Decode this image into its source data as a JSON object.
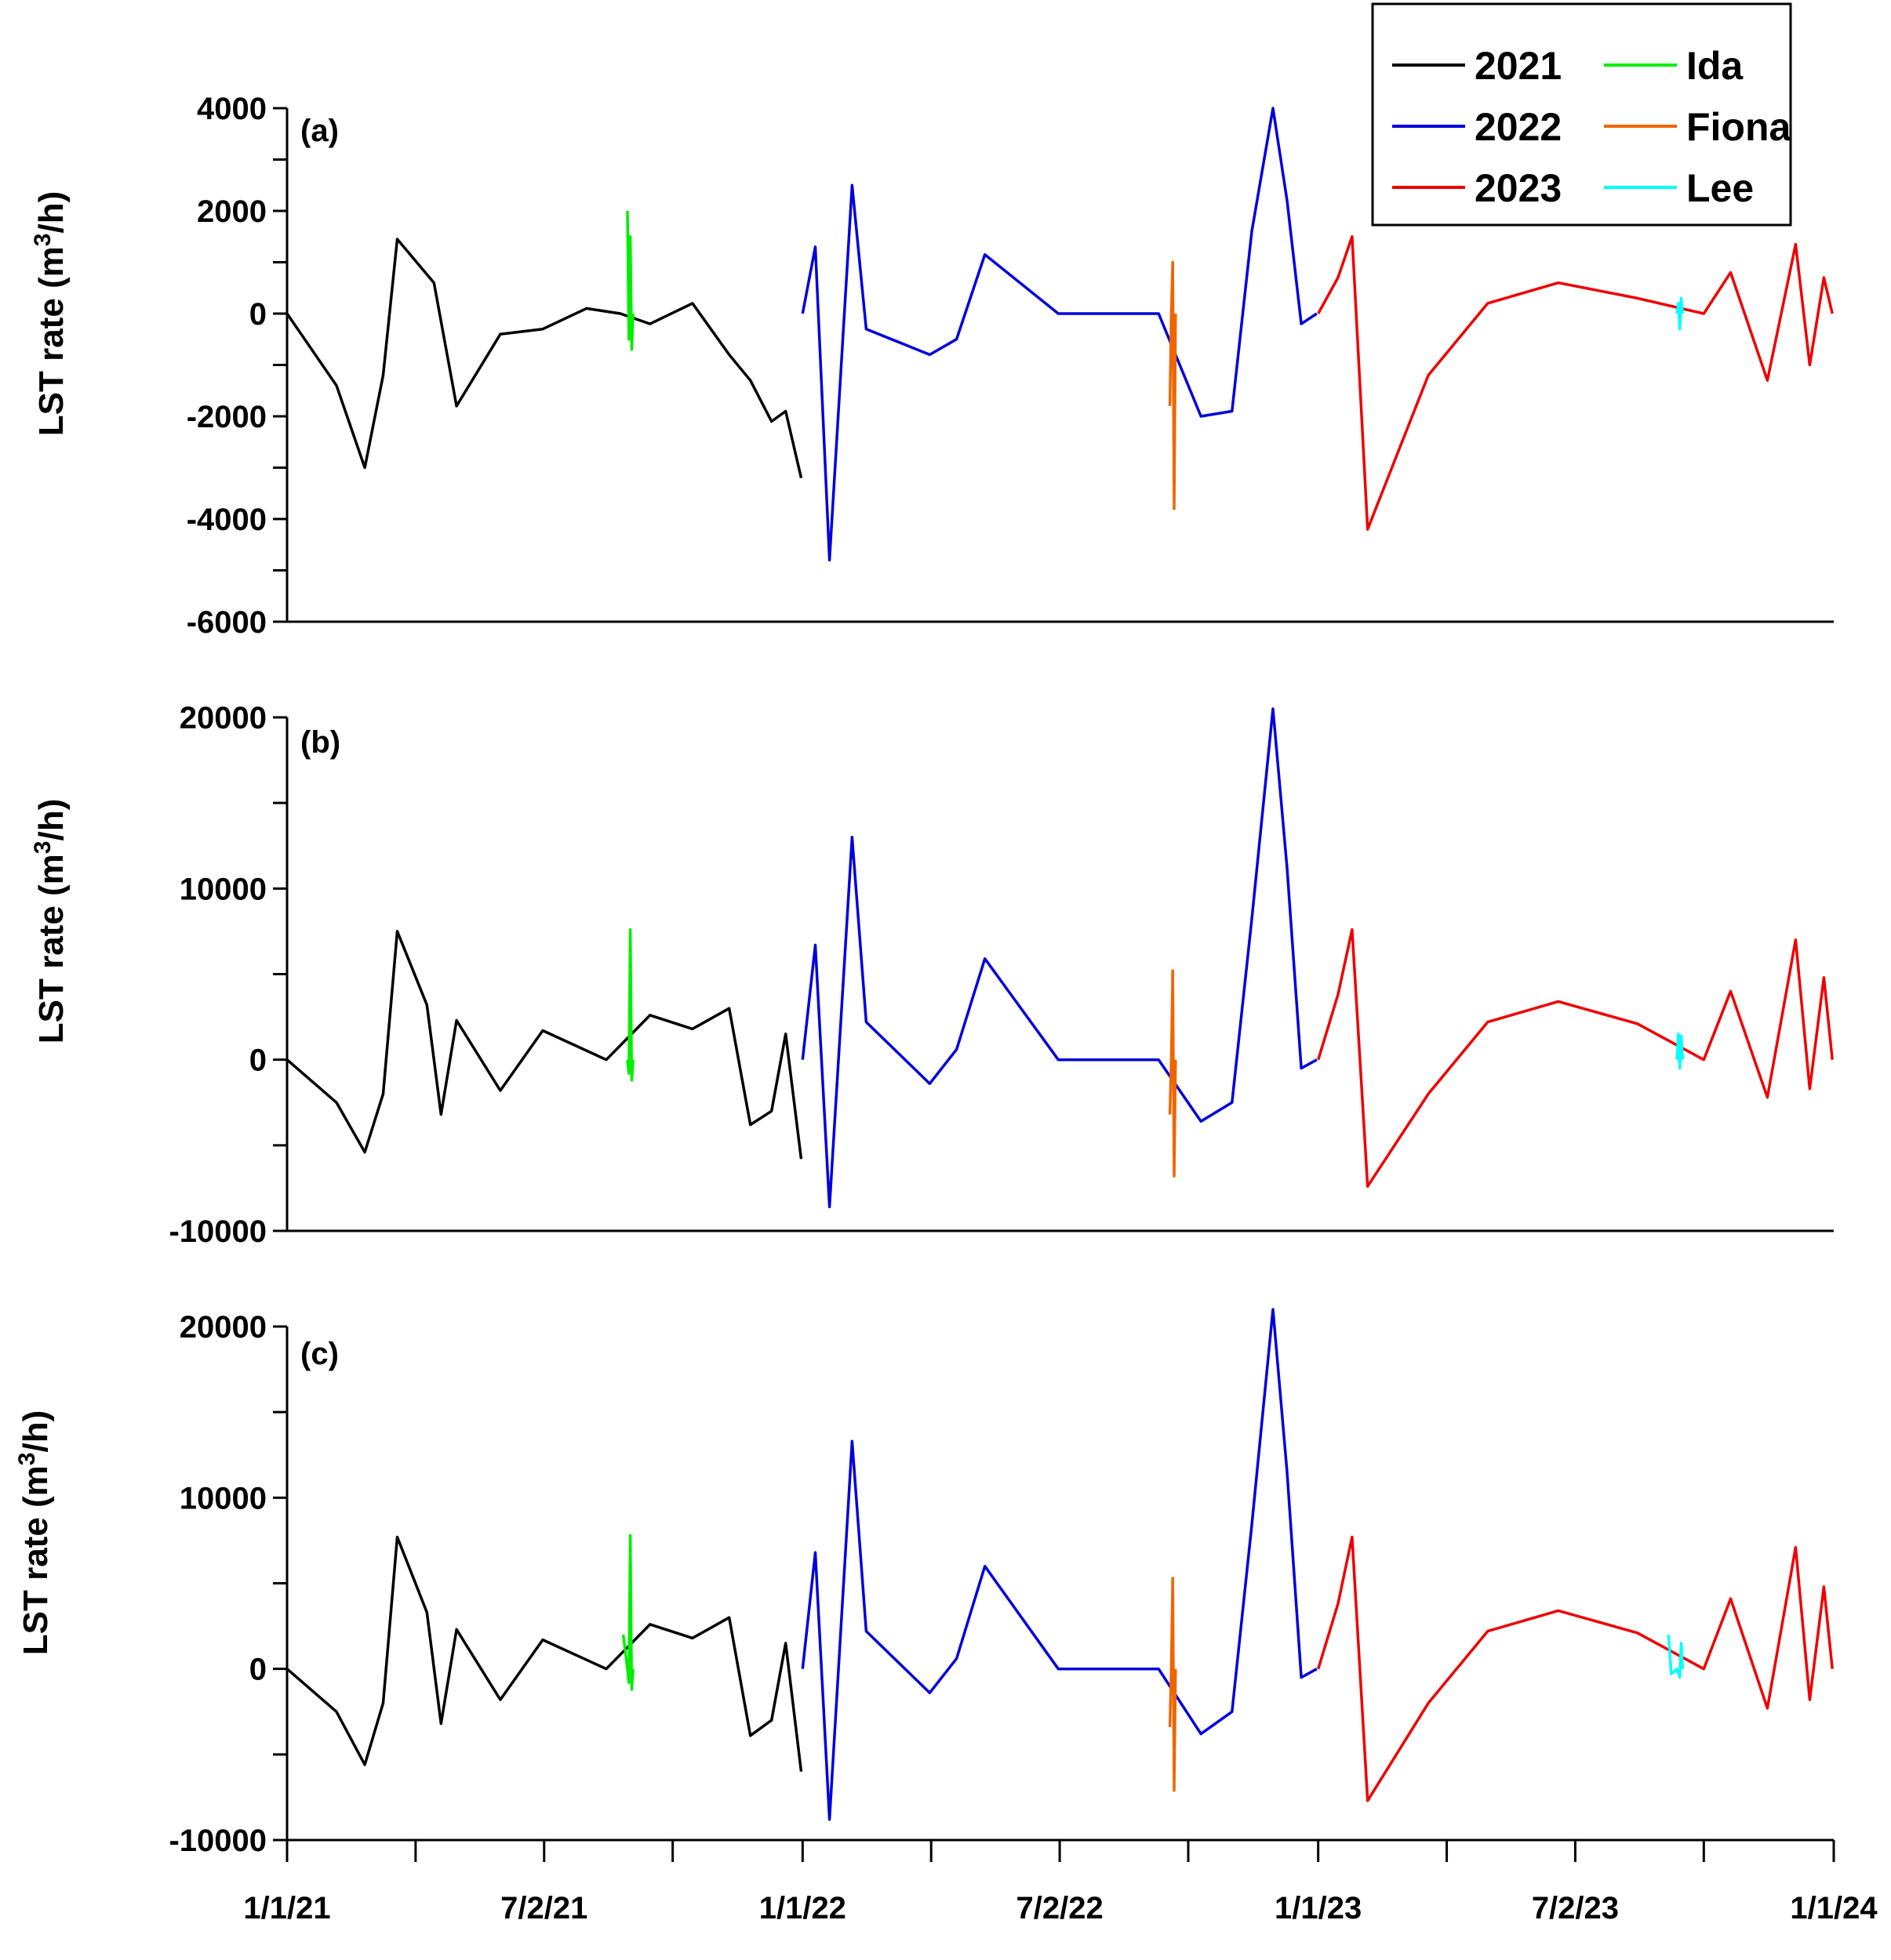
{
  "chart_data": [
    {
      "type": "line",
      "panel_label": "(a)",
      "ylabel_main": "LST rate (m",
      "ylabel_sup": "3",
      "ylabel_end": "/h)",
      "ylim": [
        -6000,
        4000
      ],
      "yticks": [
        -6000,
        -4000,
        -2000,
        0,
        2000,
        4000
      ],
      "ytick_labels": [
        "-6000",
        "-4000",
        "-2000",
        "0",
        "2000",
        "4000"
      ],
      "x_tick_labels_shown": false,
      "series": [
        {
          "name": "2021",
          "color": "#000000",
          "x": [
            "2021-01-01",
            "2021-02-05",
            "2021-02-25",
            "2021-03-10",
            "2021-03-20",
            "2021-04-15",
            "2021-05-01",
            "2021-06-01",
            "2021-07-01",
            "2021-08-01",
            "2021-08-25",
            "2021-09-15",
            "2021-10-15",
            "2021-11-10",
            "2021-11-25",
            "2021-12-10",
            "2021-12-20",
            "2021-12-31"
          ],
          "y": [
            0,
            -1400,
            -3000,
            -1200,
            1450,
            600,
            -1800,
            -400,
            -300,
            100,
            0,
            -200,
            200,
            -800,
            -1300,
            -2100,
            -1900,
            -3200
          ]
        },
        {
          "name": "Ida",
          "color": "#00ee00",
          "x": [
            "2021-08-30",
            "2021-08-31",
            "2021-09-01",
            "2021-09-02",
            "2021-09-03"
          ],
          "y": [
            2000,
            -500,
            1500,
            -700,
            0
          ]
        },
        {
          "name": "2022",
          "color": "#0000dd",
          "x": [
            "2022-01-01",
            "2022-01-10",
            "2022-01-20",
            "2022-02-05",
            "2022-02-15",
            "2022-04-01",
            "2022-04-20",
            "2022-05-10",
            "2022-07-01",
            "2022-09-10",
            "2022-10-10",
            "2022-11-01",
            "2022-11-15",
            "2022-11-30",
            "2022-12-10",
            "2022-12-20",
            "2022-12-31"
          ],
          "y": [
            0,
            1300,
            -4800,
            2500,
            -300,
            -800,
            -500,
            1150,
            0,
            0,
            -2000,
            -1900,
            1600,
            4000,
            2200,
            -200,
            0
          ]
        },
        {
          "name": "Fiona",
          "color": "#ee6600",
          "x": [
            "2022-09-18",
            "2022-09-19",
            "2022-09-20",
            "2022-09-21",
            "2022-09-22"
          ],
          "y": [
            -1800,
            0,
            1000,
            -3800,
            0
          ]
        },
        {
          "name": "2023",
          "color": "#ee0000",
          "x": [
            "2023-01-01",
            "2023-01-15",
            "2023-01-25",
            "2023-02-05",
            "2023-03-20",
            "2023-05-01",
            "2023-06-20",
            "2023-08-15",
            "2023-10-01",
            "2023-10-20",
            "2023-11-15",
            "2023-12-05",
            "2023-12-15",
            "2023-12-25",
            "2023-12-31"
          ],
          "y": [
            0,
            700,
            1500,
            -4200,
            -1200,
            200,
            600,
            300,
            0,
            800,
            -1300,
            1350,
            -1000,
            700,
            0
          ]
        },
        {
          "name": "Lee",
          "color": "#00ffff",
          "x": [
            "2023-09-12",
            "2023-09-13",
            "2023-09-14",
            "2023-09-15",
            "2023-09-16"
          ],
          "y": [
            0,
            200,
            -300,
            300,
            0
          ]
        }
      ]
    },
    {
      "type": "line",
      "panel_label": "(b)",
      "ylabel_main": "LST rate (m",
      "ylabel_sup": "3",
      "ylabel_end": "/h)",
      "ylim": [
        -10000,
        20000
      ],
      "yticks": [
        -10000,
        0,
        10000,
        20000
      ],
      "ytick_labels": [
        "-10000",
        "0",
        "10000",
        "20000"
      ],
      "minor_yticks": [
        -5000,
        5000,
        15000
      ],
      "x_tick_labels_shown": false,
      "series": [
        {
          "name": "2021",
          "color": "#000000",
          "x": [
            "2021-01-01",
            "2021-02-05",
            "2021-02-25",
            "2021-03-10",
            "2021-03-20",
            "2021-04-10",
            "2021-04-20",
            "2021-05-01",
            "2021-06-01",
            "2021-07-01",
            "2021-08-15",
            "2021-09-15",
            "2021-10-15",
            "2021-11-10",
            "2021-11-25",
            "2021-12-10",
            "2021-12-20",
            "2021-12-31"
          ],
          "y": [
            0,
            -2500,
            -5400,
            -2000,
            7500,
            3200,
            -3200,
            2300,
            -1800,
            1700,
            0,
            2600,
            1800,
            3000,
            -3800,
            -3000,
            1500,
            -5800
          ]
        },
        {
          "name": "Ida",
          "color": "#00ee00",
          "x": [
            "2021-08-30",
            "2021-08-31",
            "2021-09-01",
            "2021-09-02",
            "2021-09-03"
          ],
          "y": [
            0,
            -800,
            7600,
            -1200,
            0
          ]
        },
        {
          "name": "2022",
          "color": "#0000dd",
          "x": [
            "2022-01-01",
            "2022-01-10",
            "2022-01-20",
            "2022-02-05",
            "2022-02-15",
            "2022-04-01",
            "2022-04-20",
            "2022-05-10",
            "2022-07-01",
            "2022-09-10",
            "2022-10-10",
            "2022-11-01",
            "2022-11-15",
            "2022-11-30",
            "2022-12-10",
            "2022-12-20",
            "2022-12-31"
          ],
          "y": [
            0,
            6700,
            -8600,
            13000,
            2200,
            -1400,
            600,
            5900,
            0,
            0,
            -3600,
            -2500,
            8200,
            20500,
            11200,
            -500,
            0
          ]
        },
        {
          "name": "Fiona",
          "color": "#ee6600",
          "x": [
            "2022-09-18",
            "2022-09-19",
            "2022-09-20",
            "2022-09-21",
            "2022-09-22"
          ],
          "y": [
            -3200,
            0,
            5200,
            -6800,
            0
          ]
        },
        {
          "name": "2023",
          "color": "#ee0000",
          "x": [
            "2023-01-01",
            "2023-01-15",
            "2023-01-25",
            "2023-02-05",
            "2023-03-20",
            "2023-05-01",
            "2023-06-20",
            "2023-08-15",
            "2023-10-01",
            "2023-10-20",
            "2023-11-15",
            "2023-12-05",
            "2023-12-15",
            "2023-12-25",
            "2023-12-31"
          ],
          "y": [
            0,
            3800,
            7600,
            -7400,
            -2000,
            2200,
            3400,
            2100,
            0,
            4000,
            -2200,
            7000,
            -1700,
            4800,
            0
          ]
        },
        {
          "name": "Lee",
          "color": "#00ffff",
          "x": [
            "2023-09-12",
            "2023-09-13",
            "2023-09-14",
            "2023-09-15",
            "2023-09-16"
          ],
          "y": [
            0,
            1500,
            -500,
            1400,
            0
          ]
        }
      ]
    },
    {
      "type": "line",
      "panel_label": "(c)",
      "ylabel_main": "LST rate (m",
      "ylabel_sup": "3",
      "ylabel_end": "/h)",
      "ylim": [
        -10000,
        20000
      ],
      "yticks": [
        -10000,
        0,
        10000,
        20000
      ],
      "ytick_labels": [
        "-10000",
        "0",
        "10000",
        "20000"
      ],
      "minor_yticks": [
        -5000,
        5000,
        15000
      ],
      "x_tick_labels_shown": true,
      "x_ticks": [
        "1/1/21",
        "7/2/21",
        "1/1/22",
        "7/2/22",
        "1/1/23",
        "7/2/23",
        "1/1/24"
      ],
      "series": [
        {
          "name": "2021",
          "color": "#000000",
          "x": [
            "2021-01-01",
            "2021-02-05",
            "2021-02-25",
            "2021-03-10",
            "2021-03-20",
            "2021-04-10",
            "2021-04-20",
            "2021-05-01",
            "2021-06-01",
            "2021-07-01",
            "2021-08-15",
            "2021-09-15",
            "2021-10-15",
            "2021-11-10",
            "2021-11-25",
            "2021-12-10",
            "2021-12-20",
            "2021-12-31"
          ],
          "y": [
            0,
            -2500,
            -5600,
            -2000,
            7700,
            3300,
            -3200,
            2300,
            -1800,
            1700,
            0,
            2600,
            1800,
            3000,
            -3900,
            -3000,
            1500,
            -6000
          ]
        },
        {
          "name": "Ida",
          "color": "#00ee00",
          "x": [
            "2021-08-27",
            "2021-08-30",
            "2021-08-31",
            "2021-09-01",
            "2021-09-02",
            "2021-09-03"
          ],
          "y": [
            2000,
            0,
            -800,
            7800,
            -1200,
            0
          ]
        },
        {
          "name": "2022",
          "color": "#0000dd",
          "x": [
            "2022-01-01",
            "2022-01-10",
            "2022-01-20",
            "2022-02-05",
            "2022-02-15",
            "2022-04-01",
            "2022-04-20",
            "2022-05-10",
            "2022-07-01",
            "2022-09-10",
            "2022-10-10",
            "2022-11-01",
            "2022-11-15",
            "2022-11-30",
            "2022-12-10",
            "2022-12-20",
            "2022-12-31"
          ],
          "y": [
            0,
            6800,
            -8800,
            13300,
            2200,
            -1400,
            600,
            6000,
            0,
            0,
            -3800,
            -2500,
            8400,
            21000,
            11500,
            -500,
            0
          ]
        },
        {
          "name": "Fiona",
          "color": "#ee6600",
          "x": [
            "2022-09-18",
            "2022-09-19",
            "2022-09-20",
            "2022-09-21",
            "2022-09-22"
          ],
          "y": [
            -3400,
            0,
            5300,
            -7100,
            0
          ]
        },
        {
          "name": "2023",
          "color": "#ee0000",
          "x": [
            "2023-01-01",
            "2023-01-15",
            "2023-01-25",
            "2023-02-05",
            "2023-03-20",
            "2023-05-01",
            "2023-06-20",
            "2023-08-15",
            "2023-10-01",
            "2023-10-20",
            "2023-11-15",
            "2023-12-05",
            "2023-12-15",
            "2023-12-25",
            "2023-12-31"
          ],
          "y": [
            0,
            3800,
            7700,
            -7700,
            -2000,
            2200,
            3400,
            2100,
            0,
            4100,
            -2300,
            7100,
            -1800,
            4800,
            0
          ]
        },
        {
          "name": "Lee",
          "color": "#00ffff",
          "x": [
            "2023-09-06",
            "2023-09-08",
            "2023-09-12",
            "2023-09-14",
            "2023-09-15",
            "2023-09-16"
          ],
          "y": [
            2000,
            -300,
            0,
            -500,
            1500,
            0
          ]
        }
      ]
    }
  ],
  "legend": {
    "placement": "top-right",
    "entries": [
      {
        "label": "2021",
        "color": "#000000"
      },
      {
        "label": "Ida",
        "color": "#00ee00"
      },
      {
        "label": "2022",
        "color": "#0000dd"
      },
      {
        "label": "Fiona",
        "color": "#ee6600"
      },
      {
        "label": "2023",
        "color": "#ee0000"
      },
      {
        "label": "Lee",
        "color": "#00ffff"
      }
    ]
  }
}
